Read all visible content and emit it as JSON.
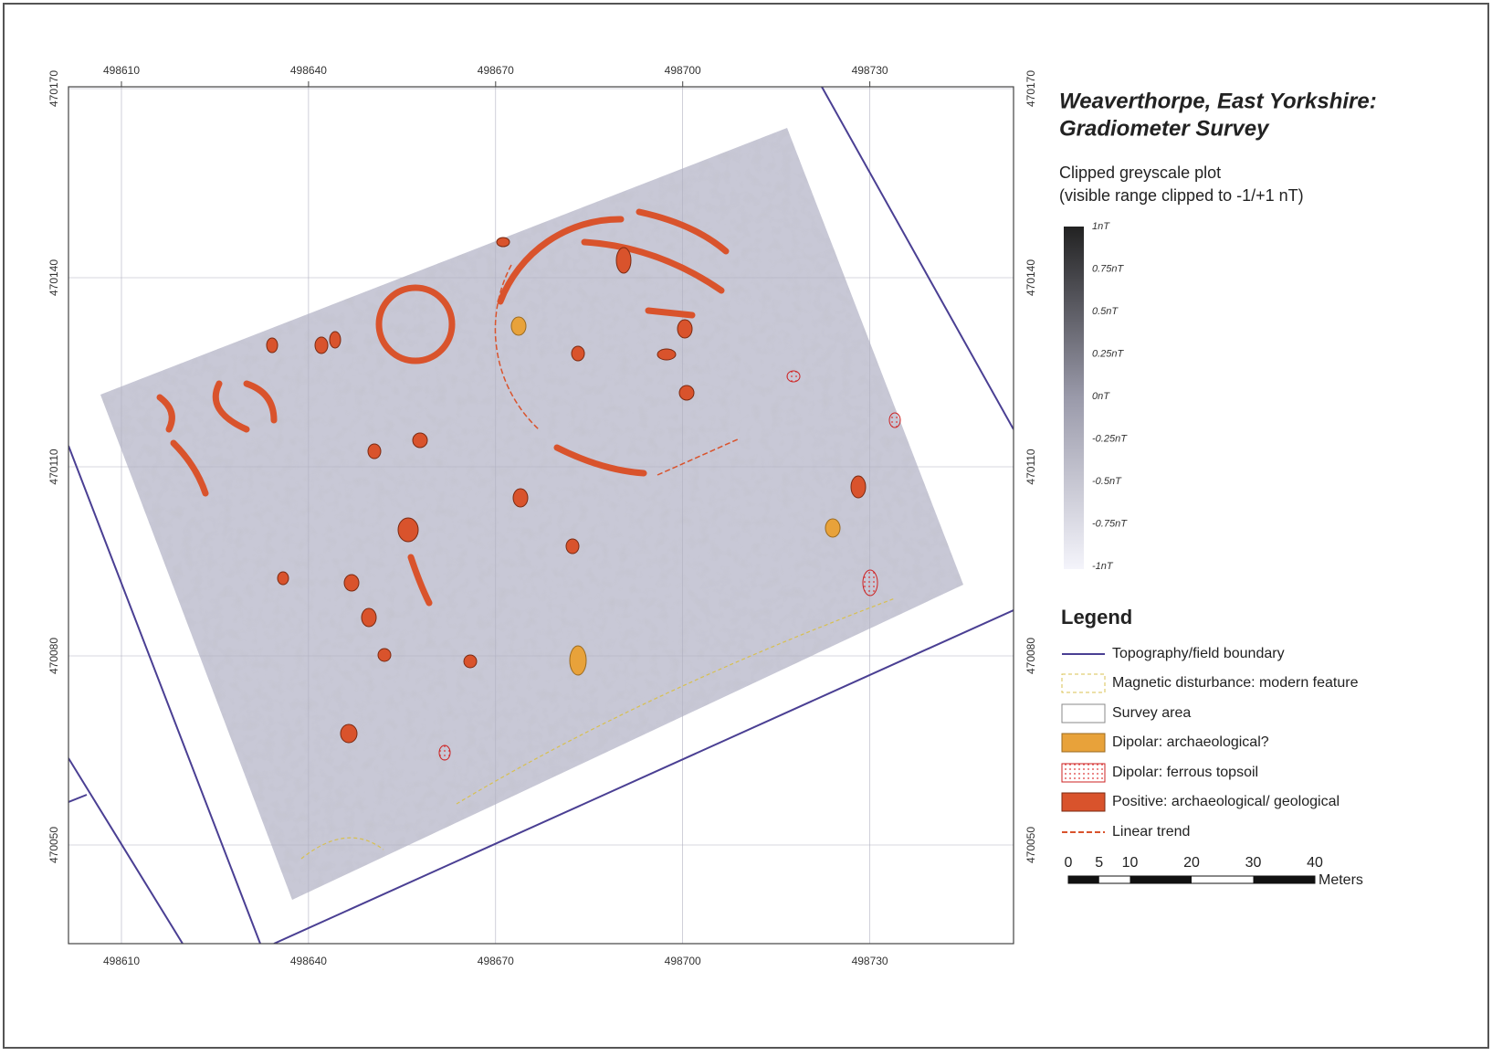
{
  "map": {
    "x_ticks": [
      498610,
      498640,
      498670,
      498700,
      498730
    ],
    "y_ticks": [
      470170,
      470140,
      470110,
      470080,
      470050
    ]
  },
  "title": [
    "Weaverthorpe, East Yorkshire:",
    "Gradiometer Survey"
  ],
  "plot_caption": [
    "Clipped greyscale plot",
    "(visible range clipped to -1/+1 nT)"
  ],
  "colorbar_labels": [
    "1nT",
    "0.75nT",
    "0.5nT",
    "0.25nT",
    "0nT",
    "-0.25nT",
    "-0.5nT",
    "-0.75nT",
    "-1nT"
  ],
  "legend": {
    "title": "Legend",
    "items": [
      "Topography/field boundary",
      "Magnetic disturbance: modern feature",
      "Survey area",
      "Dipolar: archaeological?",
      "Dipolar: ferrous topsoil",
      "Positive: archaeological/ geological",
      "Linear trend"
    ]
  },
  "scale_bar": {
    "labels": [
      0,
      5,
      10,
      20,
      30,
      40
    ],
    "unit": "Meters"
  }
}
